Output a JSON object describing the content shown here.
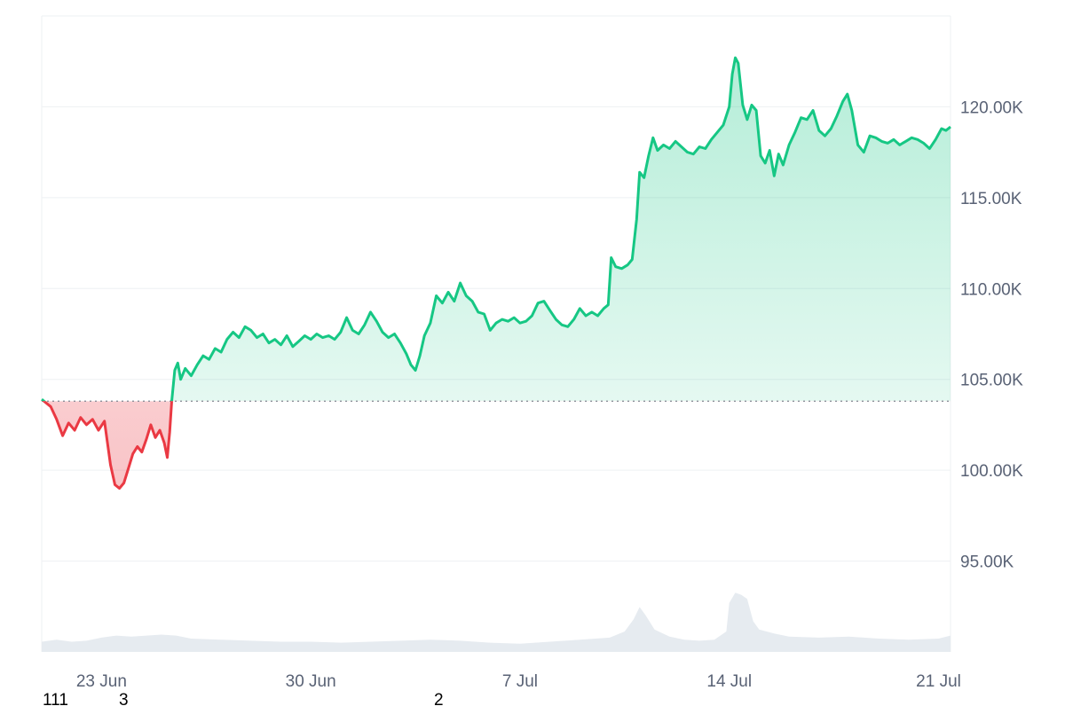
{
  "chart_data": {
    "type": "area",
    "title": "",
    "xlabel": "",
    "ylabel": "",
    "x_tick_labels": [
      {
        "day": 2,
        "label": "23 Jun"
      },
      {
        "day": 9,
        "label": "30 Jun"
      },
      {
        "day": 16,
        "label": "7 Jul"
      },
      {
        "day": 23,
        "label": "14 Jul"
      },
      {
        "day": 30,
        "label": "21 Jul"
      }
    ],
    "y_ticks": [
      95000,
      100000,
      105000,
      110000,
      115000,
      120000
    ],
    "y_tick_labels": [
      "95.00K",
      "100.00K",
      "105.00K",
      "110.00K",
      "115.00K",
      "120.00K"
    ],
    "ylim": [
      90000,
      125000
    ],
    "x_range_days": [
      0,
      30.4
    ],
    "x_unit": "days from 21 Jun",
    "baseline": 103800,
    "colors": {
      "above": "#16c784",
      "below": "#ea3943",
      "above_fill": "#d5f5e6",
      "below_fill": "#f9c9cc",
      "volume": "#e6ebf0",
      "grid": "#eef0f3",
      "baseline": "#8a8f99"
    },
    "grid": true,
    "series": [
      {
        "values": [
          [
            0.0,
            103900
          ],
          [
            0.3,
            103500
          ],
          [
            0.5,
            102800
          ],
          [
            0.7,
            101900
          ],
          [
            0.9,
            102600
          ],
          [
            1.1,
            102200
          ],
          [
            1.3,
            102900
          ],
          [
            1.5,
            102500
          ],
          [
            1.7,
            102800
          ],
          [
            1.9,
            102200
          ],
          [
            2.1,
            102700
          ],
          [
            2.3,
            100300
          ],
          [
            2.45,
            99200
          ],
          [
            2.6,
            99000
          ],
          [
            2.75,
            99300
          ],
          [
            2.9,
            100100
          ],
          [
            3.05,
            100900
          ],
          [
            3.2,
            101300
          ],
          [
            3.35,
            101000
          ],
          [
            3.5,
            101700
          ],
          [
            3.65,
            102500
          ],
          [
            3.8,
            101800
          ],
          [
            3.95,
            102200
          ],
          [
            4.1,
            101500
          ],
          [
            4.2,
            100700
          ],
          [
            4.28,
            102100
          ],
          [
            4.35,
            103800
          ],
          [
            4.45,
            105500
          ],
          [
            4.55,
            105900
          ],
          [
            4.65,
            105000
          ],
          [
            4.8,
            105600
          ],
          [
            5.0,
            105200
          ],
          [
            5.2,
            105800
          ],
          [
            5.4,
            106300
          ],
          [
            5.6,
            106100
          ],
          [
            5.8,
            106700
          ],
          [
            6.0,
            106500
          ],
          [
            6.2,
            107200
          ],
          [
            6.4,
            107600
          ],
          [
            6.6,
            107300
          ],
          [
            6.8,
            107900
          ],
          [
            7.0,
            107700
          ],
          [
            7.2,
            107300
          ],
          [
            7.4,
            107500
          ],
          [
            7.6,
            107000
          ],
          [
            7.8,
            107200
          ],
          [
            8.0,
            106900
          ],
          [
            8.2,
            107400
          ],
          [
            8.4,
            106800
          ],
          [
            8.6,
            107100
          ],
          [
            8.8,
            107400
          ],
          [
            9.0,
            107200
          ],
          [
            9.2,
            107500
          ],
          [
            9.4,
            107300
          ],
          [
            9.6,
            107400
          ],
          [
            9.8,
            107200
          ],
          [
            10.0,
            107600
          ],
          [
            10.2,
            108400
          ],
          [
            10.4,
            107700
          ],
          [
            10.6,
            107500
          ],
          [
            10.8,
            108000
          ],
          [
            11.0,
            108700
          ],
          [
            11.2,
            108200
          ],
          [
            11.4,
            107600
          ],
          [
            11.6,
            107300
          ],
          [
            11.8,
            107500
          ],
          [
            12.0,
            107000
          ],
          [
            12.2,
            106400
          ],
          [
            12.35,
            105800
          ],
          [
            12.5,
            105500
          ],
          [
            12.65,
            106300
          ],
          [
            12.8,
            107400
          ],
          [
            13.0,
            108100
          ],
          [
            13.2,
            109600
          ],
          [
            13.4,
            109200
          ],
          [
            13.6,
            109800
          ],
          [
            13.8,
            109300
          ],
          [
            14.0,
            110300
          ],
          [
            14.2,
            109600
          ],
          [
            14.4,
            109300
          ],
          [
            14.6,
            108700
          ],
          [
            14.8,
            108600
          ],
          [
            15.0,
            107700
          ],
          [
            15.2,
            108100
          ],
          [
            15.4,
            108300
          ],
          [
            15.6,
            108200
          ],
          [
            15.8,
            108400
          ],
          [
            16.0,
            108100
          ],
          [
            16.2,
            108200
          ],
          [
            16.4,
            108500
          ],
          [
            16.6,
            109200
          ],
          [
            16.8,
            109300
          ],
          [
            17.0,
            108800
          ],
          [
            17.2,
            108300
          ],
          [
            17.4,
            108000
          ],
          [
            17.6,
            107900
          ],
          [
            17.8,
            108300
          ],
          [
            18.0,
            108900
          ],
          [
            18.2,
            108500
          ],
          [
            18.4,
            108700
          ],
          [
            18.6,
            108500
          ],
          [
            18.8,
            108900
          ],
          [
            18.95,
            109100
          ],
          [
            19.05,
            111700
          ],
          [
            19.2,
            111200
          ],
          [
            19.4,
            111100
          ],
          [
            19.6,
            111300
          ],
          [
            19.75,
            111600
          ],
          [
            19.9,
            113800
          ],
          [
            20.0,
            116400
          ],
          [
            20.15,
            116100
          ],
          [
            20.3,
            117300
          ],
          [
            20.45,
            118300
          ],
          [
            20.6,
            117600
          ],
          [
            20.8,
            117900
          ],
          [
            21.0,
            117700
          ],
          [
            21.2,
            118100
          ],
          [
            21.4,
            117800
          ],
          [
            21.6,
            117500
          ],
          [
            21.8,
            117400
          ],
          [
            22.0,
            117800
          ],
          [
            22.2,
            117700
          ],
          [
            22.4,
            118200
          ],
          [
            22.6,
            118600
          ],
          [
            22.8,
            119000
          ],
          [
            23.0,
            120000
          ],
          [
            23.1,
            121800
          ],
          [
            23.2,
            122700
          ],
          [
            23.3,
            122400
          ],
          [
            23.45,
            120100
          ],
          [
            23.6,
            119300
          ],
          [
            23.75,
            120100
          ],
          [
            23.9,
            119800
          ],
          [
            24.05,
            117300
          ],
          [
            24.2,
            116900
          ],
          [
            24.35,
            117600
          ],
          [
            24.5,
            116200
          ],
          [
            24.65,
            117400
          ],
          [
            24.8,
            116800
          ],
          [
            25.0,
            117900
          ],
          [
            25.2,
            118600
          ],
          [
            25.4,
            119400
          ],
          [
            25.6,
            119300
          ],
          [
            25.8,
            119800
          ],
          [
            26.0,
            118700
          ],
          [
            26.2,
            118400
          ],
          [
            26.4,
            118800
          ],
          [
            26.6,
            119500
          ],
          [
            26.8,
            120300
          ],
          [
            26.95,
            120700
          ],
          [
            27.1,
            119800
          ],
          [
            27.3,
            117900
          ],
          [
            27.5,
            117500
          ],
          [
            27.7,
            118400
          ],
          [
            27.9,
            118300
          ],
          [
            28.1,
            118100
          ],
          [
            28.3,
            118000
          ],
          [
            28.5,
            118200
          ],
          [
            28.7,
            117900
          ],
          [
            28.9,
            118100
          ],
          [
            29.1,
            118300
          ],
          [
            29.3,
            118200
          ],
          [
            29.5,
            118000
          ],
          [
            29.7,
            117700
          ],
          [
            29.9,
            118200
          ],
          [
            30.1,
            118800
          ],
          [
            30.25,
            118700
          ],
          [
            30.4,
            118900
          ]
        ]
      }
    ],
    "volume": [
      [
        0.0,
        0.1
      ],
      [
        0.5,
        0.12
      ],
      [
        1.0,
        0.1
      ],
      [
        1.5,
        0.11
      ],
      [
        2.0,
        0.14
      ],
      [
        2.5,
        0.16
      ],
      [
        3.0,
        0.15
      ],
      [
        3.5,
        0.16
      ],
      [
        4.0,
        0.17
      ],
      [
        4.5,
        0.16
      ],
      [
        5.0,
        0.13
      ],
      [
        6.0,
        0.12
      ],
      [
        7.0,
        0.11
      ],
      [
        8.0,
        0.1
      ],
      [
        9.0,
        0.1
      ],
      [
        10.0,
        0.09
      ],
      [
        11.0,
        0.1
      ],
      [
        12.0,
        0.11
      ],
      [
        13.0,
        0.12
      ],
      [
        14.0,
        0.11
      ],
      [
        15.0,
        0.09
      ],
      [
        16.0,
        0.08
      ],
      [
        17.0,
        0.1
      ],
      [
        18.0,
        0.12
      ],
      [
        19.0,
        0.14
      ],
      [
        19.5,
        0.2
      ],
      [
        19.8,
        0.32
      ],
      [
        20.0,
        0.44
      ],
      [
        20.2,
        0.36
      ],
      [
        20.5,
        0.22
      ],
      [
        21.0,
        0.15
      ],
      [
        21.5,
        0.12
      ],
      [
        22.0,
        0.11
      ],
      [
        22.5,
        0.12
      ],
      [
        22.9,
        0.2
      ],
      [
        23.0,
        0.48
      ],
      [
        23.2,
        0.58
      ],
      [
        23.4,
        0.56
      ],
      [
        23.6,
        0.52
      ],
      [
        23.8,
        0.3
      ],
      [
        24.0,
        0.22
      ],
      [
        24.5,
        0.18
      ],
      [
        25.0,
        0.15
      ],
      [
        26.0,
        0.14
      ],
      [
        27.0,
        0.15
      ],
      [
        28.0,
        0.13
      ],
      [
        29.0,
        0.12
      ],
      [
        30.0,
        0.13
      ],
      [
        30.4,
        0.16
      ]
    ]
  },
  "footnotes": {
    "a": "111",
    "b": "3",
    "c": "2"
  }
}
